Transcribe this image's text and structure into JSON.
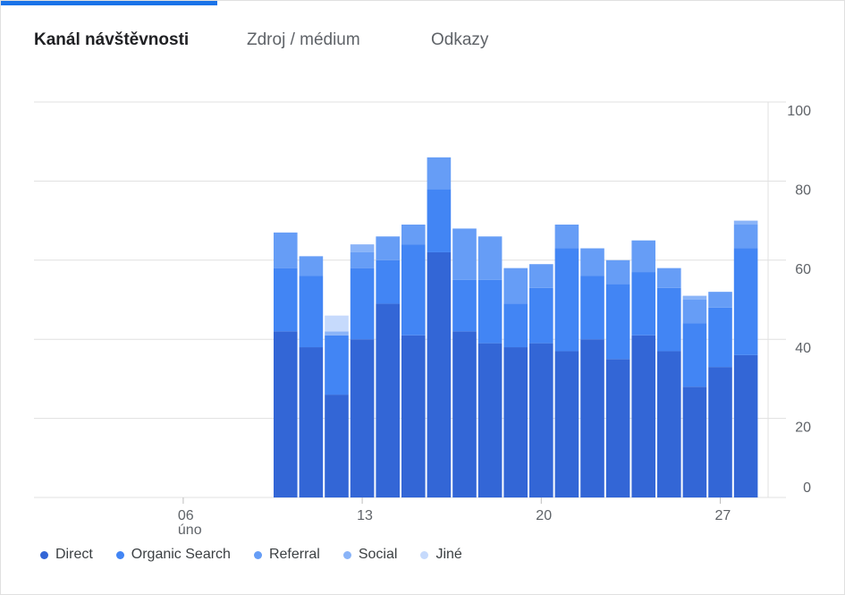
{
  "tabs": [
    {
      "label": "Kanál návštěvnosti",
      "active": true
    },
    {
      "label": "Zdroj / médium",
      "active": false
    },
    {
      "label": "Odkazy",
      "active": false
    }
  ],
  "colors": {
    "accent": "#1a73e8",
    "grid": "#e0e0e0",
    "Direct": "#3366d6",
    "Organic Search": "#4285f4",
    "Referral": "#669df6",
    "Social": "#8ab4f8",
    "Jiné": "#c6dafc"
  },
  "chart_data": {
    "type": "bar",
    "stacked": true,
    "ylim": [
      0,
      100
    ],
    "yticks": [
      0,
      20,
      40,
      60,
      80,
      100
    ],
    "y_axis_side": "right",
    "grid": true,
    "legend_position": "bottom-left",
    "x_ticks": [
      {
        "day": 6,
        "label": "06",
        "sublabel": "úno"
      },
      {
        "day": 13,
        "label": "13",
        "sublabel": ""
      },
      {
        "day": 20,
        "label": "20",
        "sublabel": ""
      },
      {
        "day": 27,
        "label": "27",
        "sublabel": ""
      }
    ],
    "x_range": [
      0,
      28
    ],
    "categories": [
      "10",
      "11",
      "12",
      "13",
      "14",
      "15",
      "16",
      "17",
      "18",
      "19",
      "20",
      "21",
      "22",
      "23",
      "24",
      "25",
      "26",
      "27",
      "28"
    ],
    "series": [
      {
        "name": "Direct",
        "values": [
          42,
          38,
          26,
          40,
          49,
          41,
          62,
          42,
          39,
          38,
          39,
          37,
          40,
          35,
          41,
          37,
          28,
          33,
          36
        ]
      },
      {
        "name": "Organic Search",
        "values": [
          16,
          18,
          15,
          18,
          11,
          23,
          16,
          13,
          16,
          11,
          14,
          26,
          16,
          19,
          16,
          16,
          16,
          15,
          27
        ]
      },
      {
        "name": "Referral",
        "values": [
          9,
          5,
          0,
          4,
          6,
          5,
          8,
          13,
          11,
          9,
          6,
          6,
          7,
          6,
          8,
          5,
          6,
          4,
          6
        ]
      },
      {
        "name": "Social",
        "values": [
          0,
          0,
          1,
          2,
          0,
          0,
          0,
          0,
          0,
          0,
          0,
          0,
          0,
          0,
          0,
          0,
          1,
          0,
          1
        ]
      },
      {
        "name": "Jiné",
        "values": [
          0,
          0,
          4,
          0,
          0,
          0,
          0,
          0,
          0,
          0,
          0,
          0,
          0,
          0,
          0,
          0,
          0,
          0,
          0
        ]
      }
    ]
  }
}
